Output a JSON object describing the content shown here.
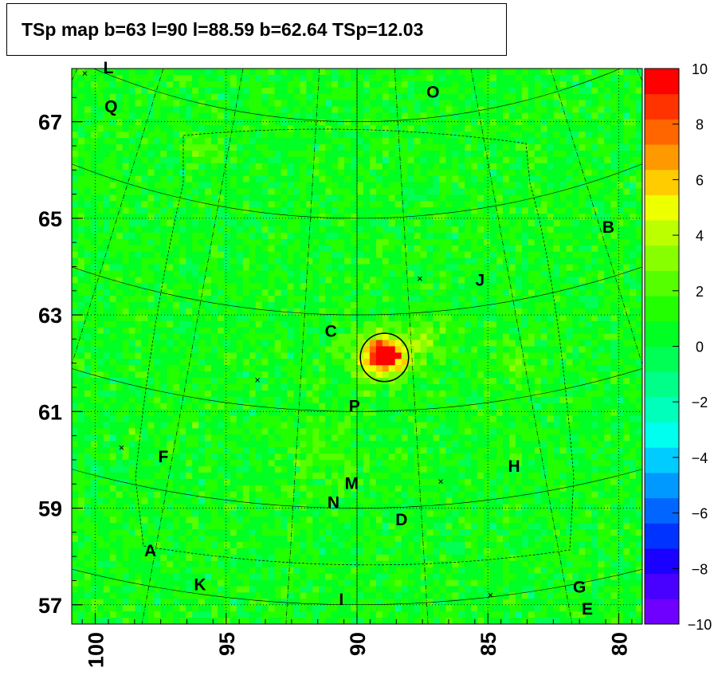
{
  "title": "TSp map b=63 l=90 l=88.59 b=62.64 TSp=12.03",
  "chart_data": {
    "type": "heatmap",
    "projection": "galactic sky map (curved graticule)",
    "xlim": [
      100.9,
      79.1
    ],
    "ylim": [
      56.6,
      68.1
    ],
    "x_ticks": [
      100,
      95,
      90,
      85,
      80
    ],
    "y_ticks": [
      67,
      65,
      63,
      61,
      59,
      57
    ],
    "colorbar": {
      "range": [
        -10,
        10
      ],
      "ticks": [
        10,
        8,
        6,
        4,
        2,
        0,
        -2,
        -4,
        -6,
        -8,
        -10
      ],
      "tick_labels": [
        "10",
        "8",
        "6",
        "4",
        "2",
        "0",
        "−2",
        "−4",
        "−6",
        "−8",
        "−10"
      ],
      "colors": [
        "#6f00ff",
        "#4800ff",
        "#1a00ff",
        "#0033ff",
        "#0066ff",
        "#0099ff",
        "#00ccff",
        "#00ffee",
        "#00ffbb",
        "#00ff88",
        "#00ff55",
        "#00ff22",
        "#22ff00",
        "#55ff00",
        "#88ff00",
        "#bbff00",
        "#eeff00",
        "#ffcc00",
        "#ff9900",
        "#ff6600",
        "#ff3300",
        "#ff0000"
      ]
    },
    "background_level": 0.8,
    "hotspots": [
      {
        "l": 88.98,
        "b": 62.15,
        "value": 10,
        "sigma": 0.18
      },
      {
        "l": 88.98,
        "b": 62.15,
        "value": 4,
        "sigma": 0.4
      },
      {
        "l": 87.3,
        "b": 62.5,
        "value": 1.5,
        "sigma": 0.3
      },
      {
        "l": 83.8,
        "b": 62.0,
        "value": 1.2,
        "sigma": 0.3
      },
      {
        "l": 91.4,
        "b": 60.2,
        "value": 1.0,
        "sigma": 0.5
      },
      {
        "l": 95.8,
        "b": 66.4,
        "value": 1.5,
        "sigma": 0.2
      }
    ],
    "circle": {
      "l": 88.95,
      "b": 62.12,
      "radius_deg": 0.5
    },
    "crosses": [
      {
        "l": 100.4,
        "b": 68.0
      },
      {
        "l": 87.6,
        "b": 63.75
      },
      {
        "l": 93.8,
        "b": 61.65
      },
      {
        "l": 99.0,
        "b": 60.25
      },
      {
        "l": 86.8,
        "b": 59.55
      },
      {
        "l": 84.9,
        "b": 57.2
      }
    ],
    "labels": [
      {
        "text": "L",
        "l": 99.5,
        "b": 68.0
      },
      {
        "text": "Q",
        "l": 99.4,
        "b": 67.2
      },
      {
        "text": "O",
        "l": 87.1,
        "b": 67.5
      },
      {
        "text": "B",
        "l": 80.4,
        "b": 64.7
      },
      {
        "text": "J",
        "l": 85.3,
        "b": 63.6
      },
      {
        "text": "C",
        "l": 91.0,
        "b": 62.55
      },
      {
        "text": "P",
        "l": 90.1,
        "b": 61.0
      },
      {
        "text": "F",
        "l": 97.4,
        "b": 59.95
      },
      {
        "text": "H",
        "l": 84.0,
        "b": 59.75
      },
      {
        "text": "M",
        "l": 90.2,
        "b": 59.4
      },
      {
        "text": "N",
        "l": 90.9,
        "b": 59.0
      },
      {
        "text": "D",
        "l": 88.3,
        "b": 58.65
      },
      {
        "text": "A",
        "l": 97.9,
        "b": 58.0
      },
      {
        "text": "K",
        "l": 96.0,
        "b": 57.3
      },
      {
        "text": "G",
        "l": 81.5,
        "b": 57.25
      },
      {
        "text": "E",
        "l": 81.2,
        "b": 56.8
      },
      {
        "text": "I",
        "l": 90.6,
        "b": 57.0
      }
    ]
  }
}
